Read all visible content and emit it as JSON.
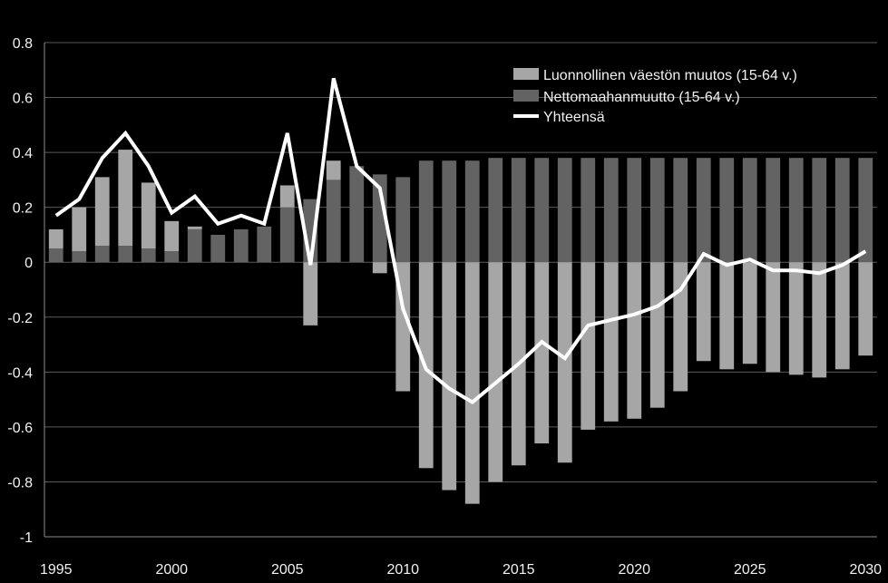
{
  "chart_data": {
    "type": "bar",
    "stacked": true,
    "title": "",
    "xlabel": "",
    "ylabel": "",
    "ylim": [
      -1,
      0.8
    ],
    "y_ticks": [
      "0.8",
      "0.6",
      "0.4",
      "0.2",
      "0",
      "-0.2",
      "-0.4",
      "-0.6",
      "-0.8",
      "-1"
    ],
    "x_ticks": [
      "1995",
      "2000",
      "2005",
      "2010",
      "2015",
      "2020",
      "2025",
      "2030"
    ],
    "legend_position": "top-right",
    "x": [
      1995,
      1996,
      1997,
      1998,
      1999,
      2000,
      2001,
      2002,
      2003,
      2004,
      2005,
      2006,
      2007,
      2008,
      2009,
      2010,
      2011,
      2012,
      2013,
      2014,
      2015,
      2016,
      2017,
      2018,
      2019,
      2020,
      2021,
      2022,
      2023,
      2024,
      2025,
      2026,
      2027,
      2028,
      2029,
      2030
    ],
    "series": [
      {
        "name": "Luonnollinen väestön muutos (15-64 v.)",
        "kind": "bar",
        "color": "#a6a6a6",
        "values": [
          0.07,
          0.16,
          0.25,
          0.35,
          0.24,
          0.11,
          0.01,
          0,
          0,
          0,
          0.08,
          -0.23,
          0.07,
          0,
          -0.04,
          -0.47,
          -0.75,
          -0.83,
          -0.88,
          -0.8,
          -0.74,
          -0.66,
          -0.73,
          -0.61,
          -0.58,
          -0.57,
          -0.53,
          -0.47,
          -0.36,
          -0.39,
          -0.37,
          -0.4,
          -0.41,
          -0.42,
          -0.39,
          -0.34
        ]
      },
      {
        "name": "Nettomaahanmuutto (15-64 v.)",
        "kind": "bar",
        "color": "#636363",
        "values": [
          0.05,
          0.04,
          0.06,
          0.06,
          0.05,
          0.04,
          0.12,
          0.1,
          0.12,
          0.13,
          0.2,
          0.23,
          0.3,
          0.35,
          0.32,
          0.31,
          0.37,
          0.37,
          0.37,
          0.38,
          0.38,
          0.38,
          0.38,
          0.38,
          0.38,
          0.38,
          0.38,
          0.38,
          0.38,
          0.38,
          0.38,
          0.38,
          0.38,
          0.38,
          0.38,
          0.38
        ]
      },
      {
        "name": "Yhteensä",
        "kind": "line",
        "color": "#ffffff",
        "values": [
          0.17,
          0.23,
          0.38,
          0.47,
          0.35,
          0.18,
          0.24,
          0.14,
          0.17,
          0.14,
          0.47,
          -0.01,
          0.67,
          0.35,
          0.27,
          -0.17,
          -0.39,
          -0.46,
          -0.51,
          -0.44,
          -0.37,
          -0.29,
          -0.35,
          -0.23,
          -0.21,
          -0.19,
          -0.16,
          -0.1,
          0.03,
          -0.01,
          0.01,
          -0.03,
          -0.03,
          -0.04,
          -0.01,
          0.04
        ]
      }
    ]
  }
}
